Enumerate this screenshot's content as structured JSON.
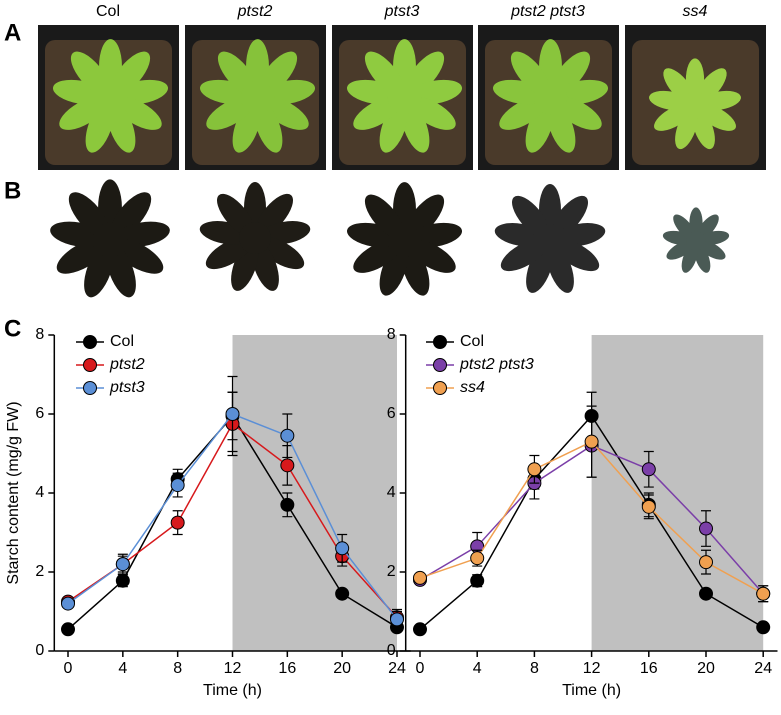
{
  "panels": {
    "a": "A",
    "b": "B",
    "c": "C"
  },
  "genotypes": [
    {
      "name": "Col",
      "italic": false
    },
    {
      "name": "ptst2",
      "italic": true
    },
    {
      "name": "ptst3",
      "italic": true
    },
    {
      "name": "ptst2 ptst3",
      "italic": true
    },
    {
      "name": "ss4",
      "italic": true
    }
  ],
  "chart_data": [
    {
      "type": "line",
      "x_label": "Time (h)",
      "y_label": "Starch content (mg/g FW)",
      "x": [
        0,
        4,
        8,
        12,
        16,
        20,
        24
      ],
      "xlim": [
        -1,
        25
      ],
      "xticks": [
        0,
        4,
        8,
        12,
        16,
        20,
        24
      ],
      "ylim": [
        0,
        8
      ],
      "yticks": [
        0,
        2,
        4,
        6,
        8
      ],
      "shade": [
        12,
        24
      ],
      "shade_color": "#c0c0c0",
      "series": [
        {
          "name": "Col",
          "color": "#000000",
          "italic": false,
          "values": [
            0.55,
            1.78,
            4.35,
            5.95,
            3.7,
            1.45,
            0.6
          ],
          "errors": [
            0.1,
            0.15,
            0.25,
            0.6,
            0.3,
            0.1,
            0.1
          ]
        },
        {
          "name": "ptst2",
          "color": "#d7191c",
          "italic": true,
          "values": [
            1.25,
            2.2,
            3.25,
            5.75,
            4.7,
            2.4,
            0.85
          ],
          "errors": [
            0.1,
            0.2,
            0.3,
            0.8,
            0.5,
            0.25,
            0.2
          ]
        },
        {
          "name": "ptst3",
          "color": "#5b8fd6",
          "italic": true,
          "values": [
            1.2,
            2.2,
            4.2,
            6.0,
            5.45,
            2.6,
            0.8
          ],
          "errors": [
            0.1,
            0.25,
            0.3,
            0.95,
            0.55,
            0.35,
            0.2
          ]
        }
      ]
    },
    {
      "type": "line",
      "x_label": "Time (h)",
      "x": [
        0,
        4,
        8,
        12,
        16,
        20,
        24
      ],
      "xlim": [
        -1,
        25
      ],
      "xticks": [
        0,
        4,
        8,
        12,
        16,
        20,
        24
      ],
      "ylim": [
        0,
        8
      ],
      "yticks": [
        0,
        2,
        4,
        6,
        8
      ],
      "shade": [
        12,
        24
      ],
      "shade_color": "#c0c0c0",
      "series": [
        {
          "name": "Col",
          "color": "#000000",
          "italic": false,
          "values": [
            0.55,
            1.78,
            4.35,
            5.95,
            3.7,
            1.45,
            0.6
          ],
          "errors": [
            0.1,
            0.15,
            0.25,
            0.6,
            0.3,
            0.1,
            0.1
          ]
        },
        {
          "name": "ptst2 ptst3",
          "color": "#7b3fa8",
          "italic": true,
          "values": [
            1.8,
            2.65,
            4.25,
            5.2,
            4.6,
            3.1,
            1.45
          ],
          "errors": [
            0.1,
            0.35,
            0.4,
            0.8,
            0.45,
            0.45,
            0.2
          ]
        },
        {
          "name": "ss4",
          "color": "#f0a050",
          "italic": true,
          "values": [
            1.85,
            2.35,
            4.6,
            5.3,
            3.65,
            2.25,
            1.45
          ],
          "errors": [
            0.1,
            0.2,
            0.35,
            0.9,
            0.3,
            0.3,
            0.2
          ]
        }
      ]
    }
  ]
}
